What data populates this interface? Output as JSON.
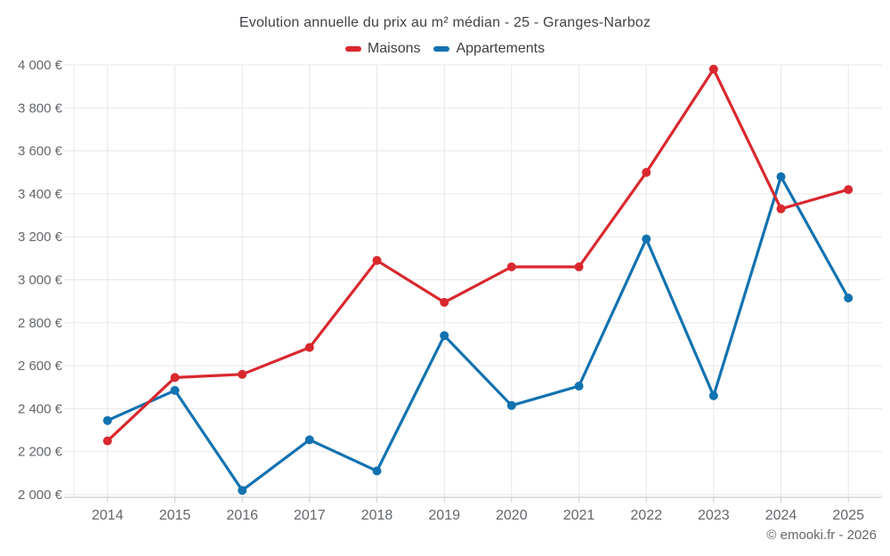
{
  "chart_data": {
    "type": "line",
    "title": "Evolution annuelle du prix au m² médian - 25 - Granges-Narboz",
    "categories": [
      "2014",
      "2015",
      "2016",
      "2017",
      "2018",
      "2019",
      "2020",
      "2021",
      "2022",
      "2023",
      "2024",
      "2025"
    ],
    "series": [
      {
        "name": "Maisons",
        "color": "#d9282e",
        "values": [
          2250,
          2545,
          2560,
          2685,
          3090,
          2895,
          3060,
          3060,
          3500,
          3980,
          3330,
          3420
        ]
      },
      {
        "name": "Appartements",
        "color": "#1272b0",
        "values": [
          2345,
          2485,
          2020,
          2255,
          2110,
          2740,
          2415,
          2505,
          3190,
          2460,
          3480,
          2915
        ]
      }
    ],
    "xlabel": "",
    "ylabel": "",
    "ylim": [
      2000,
      4000
    ],
    "ytick_step": 200,
    "ytick_labels": [
      "2 000 €",
      "2 200 €",
      "2 400 €",
      "2 600 €",
      "2 800 €",
      "3 000 €",
      "3 200 €",
      "3 400 €",
      "3 600 €",
      "3 800 €",
      "4 000 €"
    ],
    "grid": true,
    "legend_position": "top"
  },
  "footer": {
    "text": "© emooki.fr - 2026"
  }
}
